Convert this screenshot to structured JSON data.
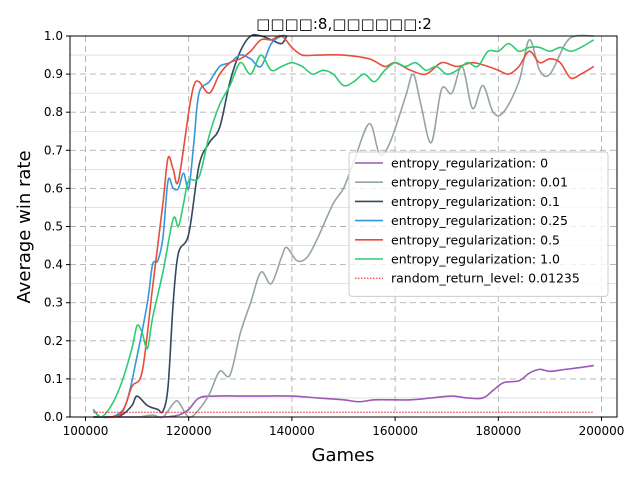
{
  "chart_data": {
    "type": "line",
    "title": "□□□□:8,□□□□□□:2",
    "xlabel": "Games",
    "ylabel": "Average win rate",
    "xlim": [
      97000,
      203000
    ],
    "ylim": [
      0.0,
      1.0
    ],
    "xticks": [
      100000,
      120000,
      140000,
      160000,
      180000,
      200000
    ],
    "xtick_labels": [
      "100000",
      "120000",
      "140000",
      "160000",
      "180000",
      "200000"
    ],
    "yticks": [
      0.0,
      0.1,
      0.2,
      0.3,
      0.4,
      0.5,
      0.6,
      0.7,
      0.8,
      0.9,
      1.0
    ],
    "ytick_labels": [
      "0.0",
      "0.1",
      "0.2",
      "0.3",
      "0.4",
      "0.5",
      "0.6",
      "0.7",
      "0.8",
      "0.9",
      "1.0"
    ],
    "grid": true,
    "legend_position": "center-right",
    "series": [
      {
        "name": "entropy_regularization: 0",
        "color": "#9b59b6",
        "points": [
          [
            101500,
            0.0
          ],
          [
            105000,
            0.0
          ],
          [
            110000,
            0.0
          ],
          [
            115000,
            0.0
          ],
          [
            118000,
            0.005
          ],
          [
            120000,
            0.02
          ],
          [
            122000,
            0.05
          ],
          [
            125000,
            0.055
          ],
          [
            130000,
            0.055
          ],
          [
            135000,
            0.055
          ],
          [
            140000,
            0.055
          ],
          [
            145000,
            0.05
          ],
          [
            150000,
            0.045
          ],
          [
            153000,
            0.04
          ],
          [
            156000,
            0.045
          ],
          [
            160000,
            0.045
          ],
          [
            163000,
            0.045
          ],
          [
            167000,
            0.05
          ],
          [
            171000,
            0.055
          ],
          [
            174000,
            0.05
          ],
          [
            177000,
            0.05
          ],
          [
            179000,
            0.07
          ],
          [
            181000,
            0.09
          ],
          [
            184000,
            0.095
          ],
          [
            186000,
            0.115
          ],
          [
            188000,
            0.125
          ],
          [
            190000,
            0.12
          ],
          [
            193000,
            0.125
          ],
          [
            196000,
            0.13
          ],
          [
            198500,
            0.135
          ]
        ]
      },
      {
        "name": "entropy_regularization: 0.01",
        "color": "#95a5a6",
        "points": [
          [
            101500,
            0.0
          ],
          [
            105000,
            0.0
          ],
          [
            110000,
            0.0
          ],
          [
            113000,
            0.005
          ],
          [
            115000,
            0.0
          ],
          [
            117000,
            0.035
          ],
          [
            118000,
            0.04
          ],
          [
            120000,
            0.0
          ],
          [
            122000,
            0.02
          ],
          [
            124000,
            0.06
          ],
          [
            126000,
            0.12
          ],
          [
            128000,
            0.11
          ],
          [
            130000,
            0.22
          ],
          [
            132000,
            0.3
          ],
          [
            134000,
            0.38
          ],
          [
            136000,
            0.35
          ],
          [
            138000,
            0.42
          ],
          [
            139000,
            0.445
          ],
          [
            141000,
            0.41
          ],
          [
            143000,
            0.42
          ],
          [
            145000,
            0.47
          ],
          [
            148000,
            0.56
          ],
          [
            150000,
            0.6
          ],
          [
            152000,
            0.67
          ],
          [
            155000,
            0.77
          ],
          [
            157000,
            0.69
          ],
          [
            159000,
            0.72
          ],
          [
            162000,
            0.84
          ],
          [
            163500,
            0.9
          ],
          [
            165000,
            0.82
          ],
          [
            167000,
            0.72
          ],
          [
            169000,
            0.86
          ],
          [
            171000,
            0.85
          ],
          [
            173000,
            0.92
          ],
          [
            175000,
            0.81
          ],
          [
            177000,
            0.87
          ],
          [
            179000,
            0.8
          ],
          [
            181000,
            0.8
          ],
          [
            184000,
            0.88
          ],
          [
            186000,
            0.99
          ],
          [
            188000,
            0.91
          ],
          [
            190000,
            0.9
          ],
          [
            193000,
            0.98
          ],
          [
            195000,
            1.0
          ],
          [
            198500,
            1.0
          ]
        ]
      },
      {
        "name": "entropy_regularization: 0.1",
        "color": "#34495e",
        "points": [
          [
            101500,
            0.0
          ],
          [
            105000,
            0.0
          ],
          [
            107000,
            0.005
          ],
          [
            109000,
            0.03
          ],
          [
            110000,
            0.055
          ],
          [
            112000,
            0.03
          ],
          [
            114000,
            0.02
          ],
          [
            115000,
            0.015
          ],
          [
            116000,
            0.08
          ],
          [
            117000,
            0.3
          ],
          [
            118000,
            0.43
          ],
          [
            120000,
            0.48
          ],
          [
            122000,
            0.66
          ],
          [
            124000,
            0.72
          ],
          [
            126000,
            0.76
          ],
          [
            128000,
            0.88
          ],
          [
            130000,
            0.96
          ],
          [
            132000,
            1.0
          ],
          [
            134000,
            1.0
          ],
          [
            136000,
            0.99
          ],
          [
            138000,
            0.98
          ],
          [
            139000,
            1.0
          ]
        ]
      },
      {
        "name": "entropy_regularization: 0.25",
        "color": "#3498db",
        "points": [
          [
            101500,
            0.02
          ],
          [
            103000,
            0.0
          ],
          [
            106000,
            0.005
          ],
          [
            108000,
            0.04
          ],
          [
            110000,
            0.16
          ],
          [
            112000,
            0.3
          ],
          [
            113000,
            0.4
          ],
          [
            114000,
            0.41
          ],
          [
            115000,
            0.47
          ],
          [
            116000,
            0.62
          ],
          [
            117000,
            0.6
          ],
          [
            118000,
            0.6
          ],
          [
            119000,
            0.64
          ],
          [
            120000,
            0.6
          ],
          [
            121000,
            0.72
          ],
          [
            122000,
            0.85
          ],
          [
            124000,
            0.88
          ],
          [
            126000,
            0.92
          ],
          [
            128000,
            0.93
          ],
          [
            130000,
            0.95
          ],
          [
            132000,
            0.94
          ],
          [
            134000,
            0.92
          ],
          [
            136000,
            0.98
          ],
          [
            138000,
            1.0
          ],
          [
            139000,
            1.0
          ]
        ]
      },
      {
        "name": "entropy_regularization: 0.5",
        "color": "#e74c3c",
        "points": [
          [
            101500,
            0.0
          ],
          [
            104000,
            0.0
          ],
          [
            107000,
            0.01
          ],
          [
            109000,
            0.08
          ],
          [
            111000,
            0.12
          ],
          [
            113000,
            0.34
          ],
          [
            115000,
            0.56
          ],
          [
            116000,
            0.68
          ],
          [
            117000,
            0.65
          ],
          [
            118000,
            0.62
          ],
          [
            120000,
            0.8
          ],
          [
            121000,
            0.87
          ],
          [
            122000,
            0.88
          ],
          [
            124000,
            0.85
          ],
          [
            126000,
            0.9
          ],
          [
            128000,
            0.93
          ],
          [
            130000,
            0.94
          ],
          [
            132000,
            0.96
          ],
          [
            134000,
            0.99
          ],
          [
            136000,
            0.99
          ],
          [
            138000,
            1.0
          ],
          [
            140000,
            0.97
          ],
          [
            142000,
            0.95
          ],
          [
            145000,
            0.95
          ],
          [
            150000,
            0.95
          ],
          [
            155000,
            0.94
          ],
          [
            158000,
            0.92
          ],
          [
            160000,
            0.93
          ],
          [
            163000,
            0.91
          ],
          [
            166000,
            0.9
          ],
          [
            169000,
            0.93
          ],
          [
            172000,
            0.92
          ],
          [
            175000,
            0.93
          ],
          [
            178000,
            0.92
          ],
          [
            180000,
            0.91
          ],
          [
            182000,
            0.9
          ],
          [
            184000,
            0.92
          ],
          [
            186000,
            0.96
          ],
          [
            188000,
            0.93
          ],
          [
            190000,
            0.94
          ],
          [
            192000,
            0.93
          ],
          [
            194000,
            0.89
          ],
          [
            196000,
            0.9
          ],
          [
            198500,
            0.92
          ]
        ]
      },
      {
        "name": "entropy_regularization: 1.0",
        "color": "#2ecc71",
        "points": [
          [
            101500,
            0.02
          ],
          [
            103000,
            0.0
          ],
          [
            105000,
            0.03
          ],
          [
            107000,
            0.09
          ],
          [
            109000,
            0.18
          ],
          [
            110000,
            0.24
          ],
          [
            111000,
            0.22
          ],
          [
            112000,
            0.18
          ],
          [
            113000,
            0.26
          ],
          [
            115000,
            0.38
          ],
          [
            117000,
            0.52
          ],
          [
            118000,
            0.5
          ],
          [
            119000,
            0.56
          ],
          [
            120000,
            0.62
          ],
          [
            122000,
            0.63
          ],
          [
            124000,
            0.74
          ],
          [
            126000,
            0.82
          ],
          [
            128000,
            0.87
          ],
          [
            130000,
            0.93
          ],
          [
            132000,
            0.9
          ],
          [
            134000,
            0.95
          ],
          [
            136000,
            0.91
          ],
          [
            138000,
            0.92
          ],
          [
            140000,
            0.93
          ],
          [
            142000,
            0.92
          ],
          [
            144000,
            0.9
          ],
          [
            146000,
            0.91
          ],
          [
            148000,
            0.9
          ],
          [
            150000,
            0.87
          ],
          [
            152000,
            0.88
          ],
          [
            154000,
            0.9
          ],
          [
            156000,
            0.88
          ],
          [
            158000,
            0.91
          ],
          [
            160000,
            0.93
          ],
          [
            162000,
            0.92
          ],
          [
            164000,
            0.93
          ],
          [
            166000,
            0.91
          ],
          [
            168000,
            0.92
          ],
          [
            170000,
            0.9
          ],
          [
            172000,
            0.91
          ],
          [
            174000,
            0.93
          ],
          [
            176000,
            0.92
          ],
          [
            178000,
            0.96
          ],
          [
            180000,
            0.96
          ],
          [
            182000,
            0.98
          ],
          [
            184000,
            0.96
          ],
          [
            186000,
            0.97
          ],
          [
            188000,
            0.97
          ],
          [
            190000,
            0.96
          ],
          [
            192000,
            0.97
          ],
          [
            194000,
            0.96
          ],
          [
            196000,
            0.97
          ],
          [
            198500,
            0.99
          ]
        ]
      },
      {
        "name": "random_return_level: 0.01235",
        "color": "#e41a1c",
        "dashed": true,
        "points": [
          [
            101500,
            0.01235
          ],
          [
            198500,
            0.01235
          ]
        ]
      }
    ]
  }
}
